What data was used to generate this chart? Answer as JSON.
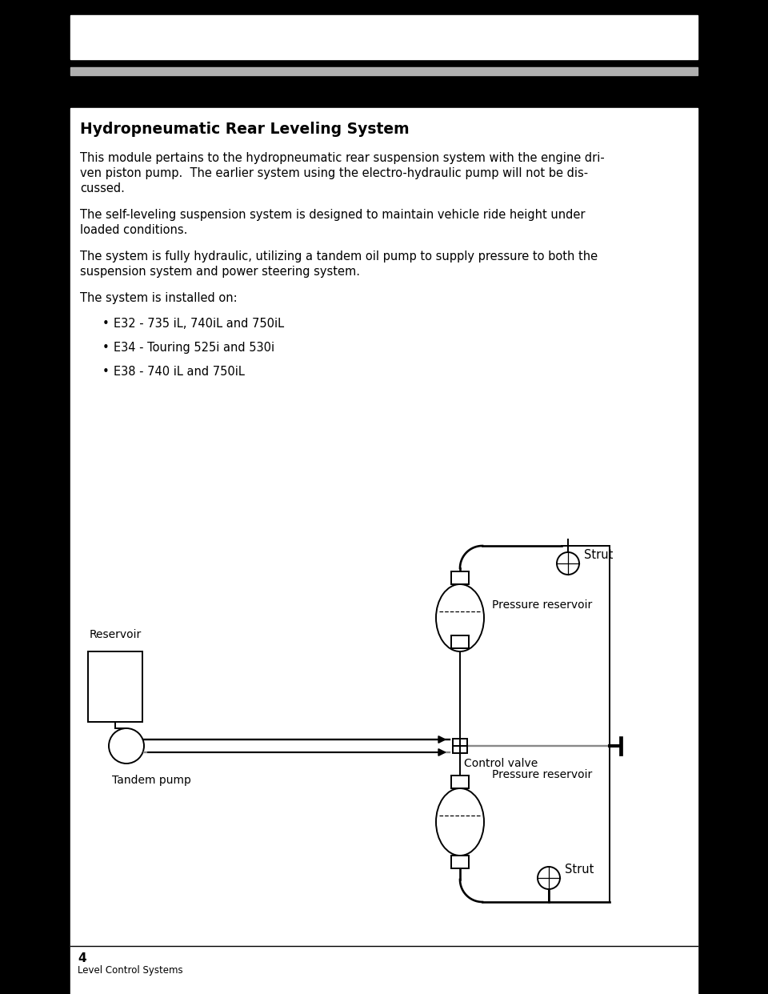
{
  "title": "Hydropneumatic Rear Leveling System",
  "para1_lines": [
    "This module pertains to the hydropneumatic rear suspension system with the engine dri-",
    "ven piston pump.  The earlier system using the electro-hydraulic pump will not be dis-",
    "cussed."
  ],
  "para2_lines": [
    "The self-leveling suspension system is designed to maintain vehicle ride height under",
    "loaded conditions."
  ],
  "para3_lines": [
    "The system is fully hydraulic, utilizing a tandem oil pump to supply pressure to both the",
    "suspension system and power steering system."
  ],
  "para4": "The system is installed on:",
  "bullets": [
    "E32 - 735 iL, 740iL and 750iL",
    "E34 - Touring 525i and 530i",
    "E38 - 740 iL and 750iL"
  ],
  "diagram_labels": {
    "reservoir": "Reservoir",
    "tandem_pump": "Tandem pump",
    "pressure_reservoir_top": "Pressure reservoir",
    "pressure_reservoir_bottom": "Pressure reservoir",
    "control_valve": "Control valve",
    "strut_top": "Strut",
    "strut_bottom": "Strut"
  },
  "page_number": "4",
  "footer": "Level Control Systems",
  "text_color": "#000000",
  "diagram_lw": 1.4
}
